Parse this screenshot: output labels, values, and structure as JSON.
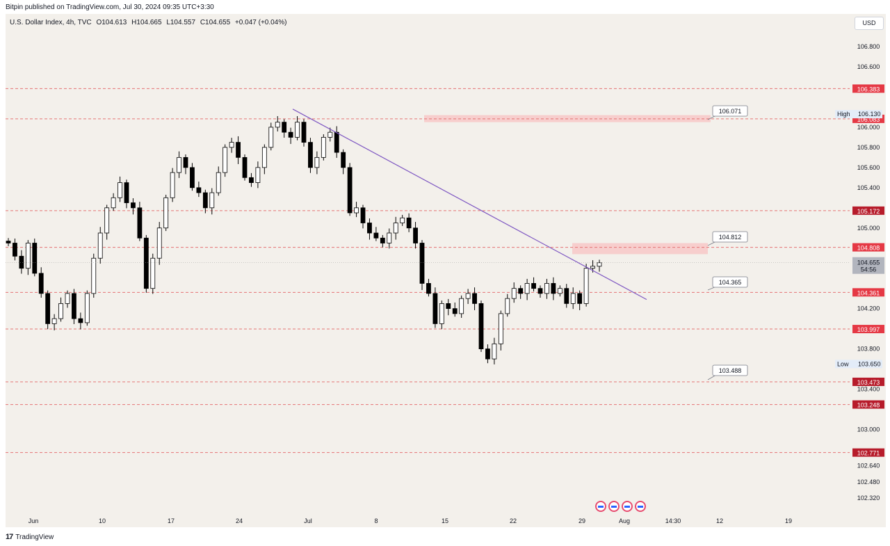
{
  "header": {
    "published": "Bitpin published on TradingView.com, Jul 30, 2024 09:35 UTC+3:30"
  },
  "symbol": {
    "name": "U.S. Dollar Index, 4h, TVC",
    "open": "O104.613",
    "high": "H104.665",
    "low": "L104.557",
    "close": "C104.655",
    "change": "+0.047 (+0.04%)"
  },
  "currency": "USD",
  "footer": {
    "brand": "TradingView"
  },
  "colors": {
    "background": "#f3f0eb",
    "level_label_red": "#e53945",
    "level_label_dark": "#b71c2b",
    "trendline": "#7e57c2",
    "zone": "#f7c6c6",
    "candle_up": "#ffffff",
    "candle_down": "#000000",
    "dashed_level": "#e57373"
  },
  "chart_data": {
    "type": "candlestick",
    "title": "U.S. Dollar Index, 4h, TVC",
    "ylim": [
      102.2,
      107.0
    ],
    "price_ticks": [
      "106.800",
      "106.600",
      "106.000",
      "105.800",
      "105.600",
      "105.400",
      "105.000",
      "104.200",
      "103.800",
      "103.400",
      "103.000",
      "102.640",
      "102.480",
      "102.320"
    ],
    "time_ticks": [
      "Jun",
      "10",
      "17",
      "24",
      "Jul",
      "8",
      "15",
      "22",
      "29",
      "Aug",
      "14:30",
      "12",
      "19"
    ],
    "levels": [
      {
        "value": "106.383",
        "style": "red"
      },
      {
        "value": "106.083",
        "style": "red"
      },
      {
        "value": "105.172",
        "style": "dark"
      },
      {
        "value": "104.808",
        "style": "red"
      },
      {
        "value": "104.361",
        "style": "red"
      },
      {
        "value": "103.997",
        "style": "red"
      },
      {
        "value": "103.473",
        "style": "dark"
      },
      {
        "value": "103.248",
        "style": "dark"
      },
      {
        "value": "102.771",
        "style": "dark"
      }
    ],
    "callouts": [
      "106.071",
      "104.812",
      "104.365",
      "103.488"
    ],
    "high": {
      "label": "High",
      "value": "106.130"
    },
    "low": {
      "label": "Low",
      "value": "103.650"
    },
    "last_price": {
      "value": "104.655",
      "countdown": "54:56"
    },
    "zones": [
      {
        "from": 106.05,
        "to": 106.12
      },
      {
        "from": 104.74,
        "to": 104.85
      }
    ],
    "trendline": {
      "start": {
        "date": "Jun 28",
        "price": 106.18
      },
      "end": {
        "date": "Aug 1",
        "price": 104.29
      }
    },
    "candles_close_path": [
      104.85,
      104.72,
      104.6,
      104.85,
      104.55,
      104.35,
      104.05,
      104.1,
      104.25,
      104.35,
      104.1,
      104.06,
      104.35,
      104.7,
      104.95,
      105.2,
      105.3,
      105.45,
      105.25,
      105.2,
      104.9,
      104.4,
      104.7,
      105.0,
      105.3,
      105.55,
      105.7,
      105.6,
      105.4,
      105.35,
      105.2,
      105.35,
      105.55,
      105.8,
      105.85,
      105.7,
      105.5,
      105.45,
      105.6,
      105.8,
      106.0,
      106.05,
      105.95,
      105.9,
      106.05,
      105.85,
      105.6,
      105.7,
      105.9,
      105.95,
      105.75,
      105.6,
      105.15,
      105.2,
      105.05,
      104.95,
      104.9,
      104.85,
      104.95,
      105.05,
      105.1,
      105.0,
      104.85,
      104.45,
      104.35,
      104.05,
      104.25,
      104.2,
      104.15,
      104.3,
      104.35,
      104.25,
      103.8,
      103.7,
      103.85,
      104.15,
      104.3,
      104.4,
      104.35,
      104.45,
      104.4,
      104.35,
      104.45,
      104.35,
      104.4,
      104.25,
      104.35,
      104.25,
      104.6,
      104.62,
      104.655
    ]
  }
}
